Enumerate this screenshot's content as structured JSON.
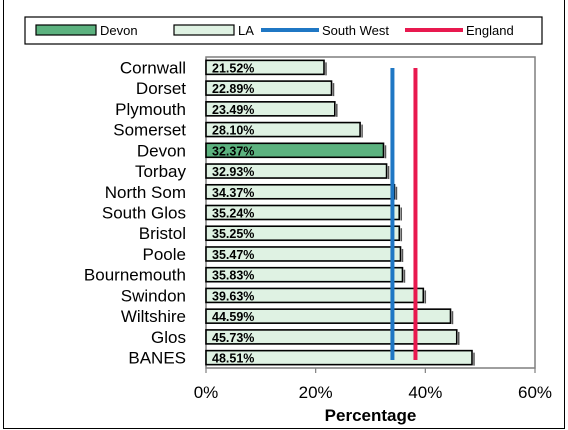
{
  "chart_data": {
    "type": "bar",
    "orientation": "horizontal",
    "categories": [
      "Cornwall",
      "Dorset",
      "Plymouth",
      "Somerset",
      "Devon",
      "Torbay",
      "North Som",
      "South Glos",
      "Bristol",
      "Poole",
      "Bournemouth",
      "Swindon",
      "Wiltshire",
      "Glos",
      "BANES"
    ],
    "values": [
      21.52,
      22.89,
      23.49,
      28.1,
      32.37,
      32.93,
      34.37,
      35.24,
      35.25,
      35.47,
      35.83,
      39.63,
      44.59,
      45.73,
      48.51
    ],
    "value_labels": [
      "21.52%",
      "22.89%",
      "23.49%",
      "28.10%",
      "32.37%",
      "32.93%",
      "34.37%",
      "35.24%",
      "35.25%",
      "35.47%",
      "35.83%",
      "39.63%",
      "44.59%",
      "45.73%",
      "48.51%"
    ],
    "highlight_category": "Devon",
    "reference_lines": [
      {
        "name": "South West",
        "value": 34.0,
        "color": "#1f77c4"
      },
      {
        "name": "England",
        "value": 38.2,
        "color": "#e8194f"
      }
    ],
    "legend": [
      {
        "name": "Devon",
        "kind": "bar",
        "color": "#5cb27f"
      },
      {
        "name": "LA",
        "kind": "bar",
        "color": "#dff2e3"
      },
      {
        "name": "South West",
        "kind": "line",
        "color": "#1f77c4"
      },
      {
        "name": "England",
        "kind": "line",
        "color": "#e8194f"
      }
    ],
    "legend_placement": "top",
    "xlabel": "Percentage",
    "ylabel": "",
    "xlim": [
      0,
      60
    ],
    "xticks": [
      "0%",
      "20%",
      "40%",
      "60%"
    ],
    "xtick_values": [
      0,
      20,
      40,
      60
    ],
    "grid": false,
    "colors": {
      "devon": "#5cb27f",
      "la": "#dff2e3",
      "bar_border": "#000000",
      "plot_bg": "#ffffff"
    }
  }
}
